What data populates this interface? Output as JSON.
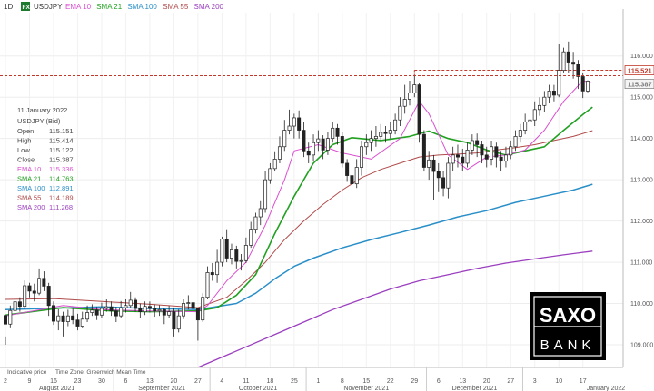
{
  "toolbar": {
    "timeframe": "1D",
    "badge": "FX",
    "instrument": "USDJPY",
    "indicators": [
      {
        "label": "EMA 10",
        "color": "#d94fd0"
      },
      {
        "label": "SMA 21",
        "color": "#21a021"
      },
      {
        "label": "SMA 100",
        "color": "#2a8fc8"
      },
      {
        "label": "SMA 55",
        "color": "#b04a4a"
      },
      {
        "label": "SMA 200",
        "color": "#9b3fbf"
      }
    ]
  },
  "info_panel": {
    "date": "11 January 2022",
    "symbol": "USDJPY (Bid)",
    "rows": [
      {
        "label": "Open",
        "value": "115.151",
        "color": "#444444"
      },
      {
        "label": "High",
        "value": "115.414",
        "color": "#444444"
      },
      {
        "label": "Low",
        "value": "115.122",
        "color": "#444444"
      },
      {
        "label": "Close",
        "value": "115.387",
        "color": "#444444"
      },
      {
        "label": "EMA 10",
        "value": "115.336",
        "color": "#d94fd0"
      },
      {
        "label": "SMA 21",
        "value": "114.763",
        "color": "#21a021"
      },
      {
        "label": "SMA 100",
        "value": "112.891",
        "color": "#2a8fc8"
      },
      {
        "label": "SMA 55",
        "value": "114.189",
        "color": "#b04a4a"
      },
      {
        "label": "SMA 200",
        "value": "111.268",
        "color": "#9b3fbf"
      }
    ]
  },
  "footer": {
    "indicative": "Indicative price",
    "timezone": "Time Zone: Greenwich Mean Time"
  },
  "logo": {
    "line1": "SAXO",
    "line2": "BANK"
  },
  "price_tags": [
    {
      "label": "115.521",
      "value": 115.521,
      "color": "#c0392b"
    },
    {
      "label": "115.387",
      "value": 115.387,
      "color": "#888888"
    }
  ],
  "chart_data": {
    "type": "candlestick",
    "y_ticks": [
      "116.000",
      "115.000",
      "114.000",
      "113.000",
      "112.000",
      "111.000",
      "110.000",
      "109.000"
    ],
    "y_tick_values": [
      116,
      115,
      114,
      113,
      112,
      111,
      110,
      109
    ],
    "ylim": [
      108.45,
      117.05
    ],
    "day_ticks": [
      "2",
      "9",
      "16",
      "23",
      "30",
      "6",
      "13",
      "20",
      "27",
      "4",
      "11",
      "18",
      "25",
      "1",
      "8",
      "15",
      "22",
      "29",
      "6",
      "13",
      "20",
      "27",
      "3",
      "10",
      "17"
    ],
    "month_labels": [
      "August 2021",
      "September 2021",
      "October 2021",
      "November 2021",
      "December 2021",
      "January 2022"
    ],
    "resistance_level": 115.521,
    "candles": [
      [
        109.71,
        109.5,
        109.2,
        109.0
      ],
      [
        109.5,
        109.83,
        109.95,
        109.4
      ],
      [
        109.83,
        110.04,
        110.2,
        109.76
      ],
      [
        110.04,
        109.93,
        110.15,
        109.8
      ],
      [
        109.93,
        110.43,
        110.56,
        109.86
      ],
      [
        110.43,
        110.3,
        110.5,
        110.15
      ],
      [
        110.3,
        110.25,
        110.48,
        110.05
      ],
      [
        110.25,
        110.61,
        110.85,
        110.2
      ],
      [
        110.61,
        110.42,
        110.78,
        110.3
      ],
      [
        110.42,
        109.95,
        110.5,
        109.7
      ],
      [
        109.95,
        109.57,
        110.05,
        109.48
      ],
      [
        109.57,
        109.7,
        109.86,
        109.35
      ],
      [
        109.7,
        109.56,
        109.8,
        109.2
      ],
      [
        109.56,
        109.7,
        109.85,
        109.45
      ],
      [
        109.7,
        109.6,
        109.9,
        109.5
      ],
      [
        109.6,
        109.45,
        109.75,
        109.35
      ],
      [
        109.45,
        109.62,
        109.8,
        109.4
      ],
      [
        109.62,
        109.78,
        109.95,
        109.55
      ],
      [
        109.78,
        109.84,
        109.98,
        109.7
      ],
      [
        109.84,
        109.72,
        109.92,
        109.6
      ],
      [
        109.72,
        109.88,
        110.02,
        109.65
      ],
      [
        109.88,
        109.92,
        110.1,
        109.8
      ],
      [
        109.92,
        109.82,
        110.05,
        109.7
      ],
      [
        109.82,
        109.7,
        109.92,
        109.55
      ],
      [
        109.7,
        109.9,
        110.06,
        109.66
      ],
      [
        109.9,
        109.95,
        110.1,
        109.78
      ],
      [
        109.95,
        110.08,
        110.28,
        109.88
      ],
      [
        110.08,
        109.88,
        110.15,
        109.8
      ],
      [
        109.88,
        109.8,
        110.0,
        109.65
      ],
      [
        109.8,
        109.93,
        110.05,
        109.72
      ],
      [
        109.93,
        109.88,
        110.05,
        109.78
      ],
      [
        109.88,
        109.82,
        109.98,
        109.68
      ],
      [
        109.82,
        109.85,
        109.96,
        109.7
      ],
      [
        109.85,
        109.72,
        109.9,
        109.5
      ],
      [
        109.72,
        109.8,
        109.95,
        109.65
      ],
      [
        109.8,
        109.38,
        109.88,
        109.2
      ],
      [
        109.38,
        109.7,
        109.85,
        109.3
      ],
      [
        109.7,
        110.0,
        110.1,
        109.62
      ],
      [
        110.0,
        110.02,
        110.2,
        109.85
      ],
      [
        110.02,
        109.88,
        110.15,
        109.75
      ],
      [
        109.88,
        109.6,
        109.9,
        109.1
      ],
      [
        109.6,
        110.15,
        110.25,
        109.55
      ],
      [
        110.15,
        110.75,
        110.9,
        110.1
      ],
      [
        110.75,
        110.7,
        110.98,
        110.55
      ],
      [
        110.7,
        111.0,
        111.3,
        110.5
      ],
      [
        111.0,
        111.56,
        111.62,
        110.9
      ],
      [
        111.56,
        111.1,
        111.8,
        111.0
      ],
      [
        111.1,
        111.3,
        111.45,
        110.95
      ],
      [
        111.3,
        111.02,
        111.4,
        110.85
      ],
      [
        111.02,
        111.04,
        111.2,
        110.8
      ],
      [
        111.04,
        111.41,
        111.6,
        110.98
      ],
      [
        111.41,
        111.8,
        111.98,
        111.35
      ],
      [
        111.8,
        112.1,
        112.2,
        111.7
      ],
      [
        112.1,
        112.3,
        112.48,
        111.9
      ],
      [
        112.3,
        113.0,
        113.2,
        112.2
      ],
      [
        113.0,
        113.27,
        113.4,
        112.9
      ],
      [
        113.27,
        113.5,
        113.69,
        113.2
      ],
      [
        113.5,
        113.8,
        114.05,
        113.4
      ],
      [
        113.8,
        114.2,
        114.45,
        113.7
      ],
      [
        114.2,
        114.3,
        114.7,
        114.1
      ],
      [
        114.3,
        114.5,
        114.6,
        114.0
      ],
      [
        114.5,
        114.2,
        114.68,
        114.0
      ],
      [
        114.2,
        113.7,
        114.4,
        113.55
      ],
      [
        113.7,
        113.6,
        113.9,
        113.4
      ],
      [
        113.6,
        113.9,
        114.1,
        113.45
      ],
      [
        113.9,
        113.99,
        114.2,
        113.7
      ],
      [
        113.99,
        113.72,
        114.08,
        113.5
      ],
      [
        113.72,
        114.0,
        114.15,
        113.6
      ],
      [
        114.0,
        114.25,
        114.4,
        113.9
      ],
      [
        114.25,
        114.05,
        114.35,
        113.85
      ],
      [
        114.05,
        113.4,
        114.15,
        113.3
      ],
      [
        113.4,
        113.1,
        113.5,
        112.95
      ],
      [
        113.1,
        112.9,
        113.25,
        112.75
      ],
      [
        112.9,
        113.3,
        113.5,
        112.8
      ],
      [
        113.3,
        113.8,
        113.95,
        113.1
      ],
      [
        113.8,
        113.9,
        114.1,
        113.6
      ],
      [
        113.9,
        114.0,
        114.2,
        113.7
      ],
      [
        114.0,
        114.05,
        114.3,
        113.8
      ],
      [
        114.05,
        114.15,
        114.35,
        113.95
      ],
      [
        114.15,
        114.12,
        114.3,
        113.9
      ],
      [
        114.12,
        114.2,
        114.4,
        114.0
      ],
      [
        114.2,
        114.45,
        114.6,
        114.1
      ],
      [
        114.45,
        114.78,
        115.0,
        114.3
      ],
      [
        114.78,
        114.95,
        115.3,
        114.6
      ],
      [
        114.95,
        115.1,
        115.4,
        114.8
      ],
      [
        115.1,
        115.3,
        115.52,
        115.0
      ],
      [
        115.3,
        114.1,
        115.35,
        113.9
      ],
      [
        114.1,
        113.3,
        114.2,
        113.2
      ],
      [
        113.3,
        113.48,
        113.7,
        113.0
      ],
      [
        113.48,
        113.2,
        113.6,
        112.5
      ],
      [
        113.2,
        113.05,
        113.4,
        112.7
      ],
      [
        113.05,
        112.8,
        113.2,
        112.6
      ],
      [
        112.8,
        113.4,
        113.55,
        112.55
      ],
      [
        113.4,
        113.6,
        113.8,
        113.2
      ],
      [
        113.6,
        113.55,
        113.85,
        113.3
      ],
      [
        113.55,
        113.4,
        113.75,
        113.2
      ],
      [
        113.4,
        113.72,
        113.9,
        113.3
      ],
      [
        113.72,
        113.95,
        114.1,
        113.6
      ],
      [
        113.95,
        113.85,
        114.12,
        113.55
      ],
      [
        113.85,
        113.6,
        113.95,
        113.4
      ],
      [
        113.6,
        113.5,
        113.8,
        113.3
      ],
      [
        113.5,
        113.8,
        113.95,
        113.35
      ],
      [
        113.8,
        113.55,
        113.9,
        113.3
      ],
      [
        113.55,
        113.45,
        113.7,
        113.2
      ],
      [
        113.45,
        113.6,
        113.8,
        113.3
      ],
      [
        113.6,
        113.8,
        113.95,
        113.5
      ],
      [
        113.8,
        114.05,
        114.2,
        113.7
      ],
      [
        114.05,
        114.2,
        114.35,
        113.9
      ],
      [
        114.2,
        114.4,
        114.6,
        114.1
      ],
      [
        114.4,
        114.45,
        114.7,
        114.2
      ],
      [
        114.45,
        114.7,
        114.9,
        114.3
      ],
      [
        114.7,
        114.8,
        115.0,
        114.55
      ],
      [
        114.8,
        115.0,
        115.15,
        114.65
      ],
      [
        115.0,
        115.15,
        115.3,
        114.85
      ],
      [
        115.15,
        115.05,
        115.3,
        114.9
      ],
      [
        115.05,
        115.65,
        116.3,
        115.0
      ],
      [
        115.65,
        116.1,
        116.2,
        115.6
      ],
      [
        116.1,
        115.85,
        116.35,
        115.6
      ],
      [
        115.85,
        115.8,
        116.1,
        115.45
      ],
      [
        115.8,
        115.5,
        115.9,
        115.2
      ],
      [
        115.5,
        115.15,
        115.6,
        114.98
      ],
      [
        115.15,
        115.39,
        115.41,
        115.12
      ]
    ],
    "ema10": [
      [
        0,
        109.7
      ],
      [
        12,
        109.95
      ],
      [
        20,
        109.85
      ],
      [
        30,
        109.82
      ],
      [
        40,
        109.8
      ],
      [
        42,
        109.95
      ],
      [
        46,
        110.55
      ],
      [
        50,
        111.0
      ],
      [
        54,
        111.9
      ],
      [
        58,
        113.0
      ],
      [
        60,
        113.7
      ],
      [
        65,
        113.85
      ],
      [
        70,
        113.65
      ],
      [
        76,
        113.5
      ],
      [
        82,
        114.0
      ],
      [
        86,
        114.9
      ],
      [
        88,
        114.6
      ],
      [
        92,
        113.6
      ],
      [
        96,
        113.25
      ],
      [
        100,
        113.55
      ],
      [
        104,
        113.6
      ],
      [
        108,
        113.72
      ],
      [
        112,
        114.2
      ],
      [
        116,
        114.9
      ],
      [
        120,
        115.4
      ],
      [
        122,
        115.34
      ]
    ],
    "sma21": [
      [
        0,
        109.72
      ],
      [
        12,
        109.9
      ],
      [
        22,
        109.82
      ],
      [
        30,
        109.8
      ],
      [
        40,
        109.82
      ],
      [
        44,
        109.9
      ],
      [
        48,
        110.2
      ],
      [
        52,
        110.7
      ],
      [
        56,
        111.7
      ],
      [
        60,
        112.6
      ],
      [
        64,
        113.4
      ],
      [
        68,
        113.85
      ],
      [
        72,
        114.02
      ],
      [
        78,
        113.95
      ],
      [
        84,
        114.05
      ],
      [
        88,
        114.18
      ],
      [
        92,
        114.0
      ],
      [
        96,
        113.9
      ],
      [
        100,
        113.72
      ],
      [
        104,
        113.6
      ],
      [
        108,
        113.7
      ],
      [
        112,
        113.8
      ],
      [
        116,
        114.2
      ],
      [
        120,
        114.58
      ],
      [
        122,
        114.76
      ]
    ],
    "sma55": [
      [
        0,
        110.1
      ],
      [
        10,
        110.12
      ],
      [
        20,
        110.05
      ],
      [
        30,
        109.98
      ],
      [
        40,
        109.9
      ],
      [
        46,
        110.15
      ],
      [
        50,
        110.55
      ],
      [
        54,
        111.0
      ],
      [
        58,
        111.55
      ],
      [
        62,
        112.0
      ],
      [
        66,
        112.4
      ],
      [
        70,
        112.75
      ],
      [
        74,
        113.05
      ],
      [
        78,
        113.25
      ],
      [
        82,
        113.4
      ],
      [
        86,
        113.55
      ],
      [
        90,
        113.6
      ],
      [
        94,
        113.62
      ],
      [
        98,
        113.65
      ],
      [
        102,
        113.72
      ],
      [
        106,
        113.78
      ],
      [
        110,
        113.85
      ],
      [
        114,
        113.95
      ],
      [
        118,
        114.05
      ],
      [
        122,
        114.19
      ]
    ],
    "sma100": [
      [
        0,
        109.85
      ],
      [
        20,
        109.92
      ],
      [
        30,
        109.88
      ],
      [
        40,
        109.85
      ],
      [
        48,
        110.0
      ],
      [
        52,
        110.25
      ],
      [
        56,
        110.6
      ],
      [
        60,
        110.9
      ],
      [
        64,
        111.1
      ],
      [
        70,
        111.35
      ],
      [
        76,
        111.55
      ],
      [
        82,
        111.72
      ],
      [
        88,
        111.9
      ],
      [
        94,
        112.1
      ],
      [
        100,
        112.25
      ],
      [
        106,
        112.45
      ],
      [
        112,
        112.6
      ],
      [
        118,
        112.75
      ],
      [
        122,
        112.89
      ]
    ],
    "sma200": [
      [
        40,
        108.45
      ],
      [
        46,
        108.75
      ],
      [
        50,
        108.95
      ],
      [
        56,
        109.25
      ],
      [
        62,
        109.55
      ],
      [
        68,
        109.85
      ],
      [
        74,
        110.1
      ],
      [
        80,
        110.35
      ],
      [
        86,
        110.55
      ],
      [
        92,
        110.7
      ],
      [
        98,
        110.85
      ],
      [
        104,
        110.98
      ],
      [
        110,
        111.08
      ],
      [
        116,
        111.18
      ],
      [
        122,
        111.27
      ]
    ]
  }
}
